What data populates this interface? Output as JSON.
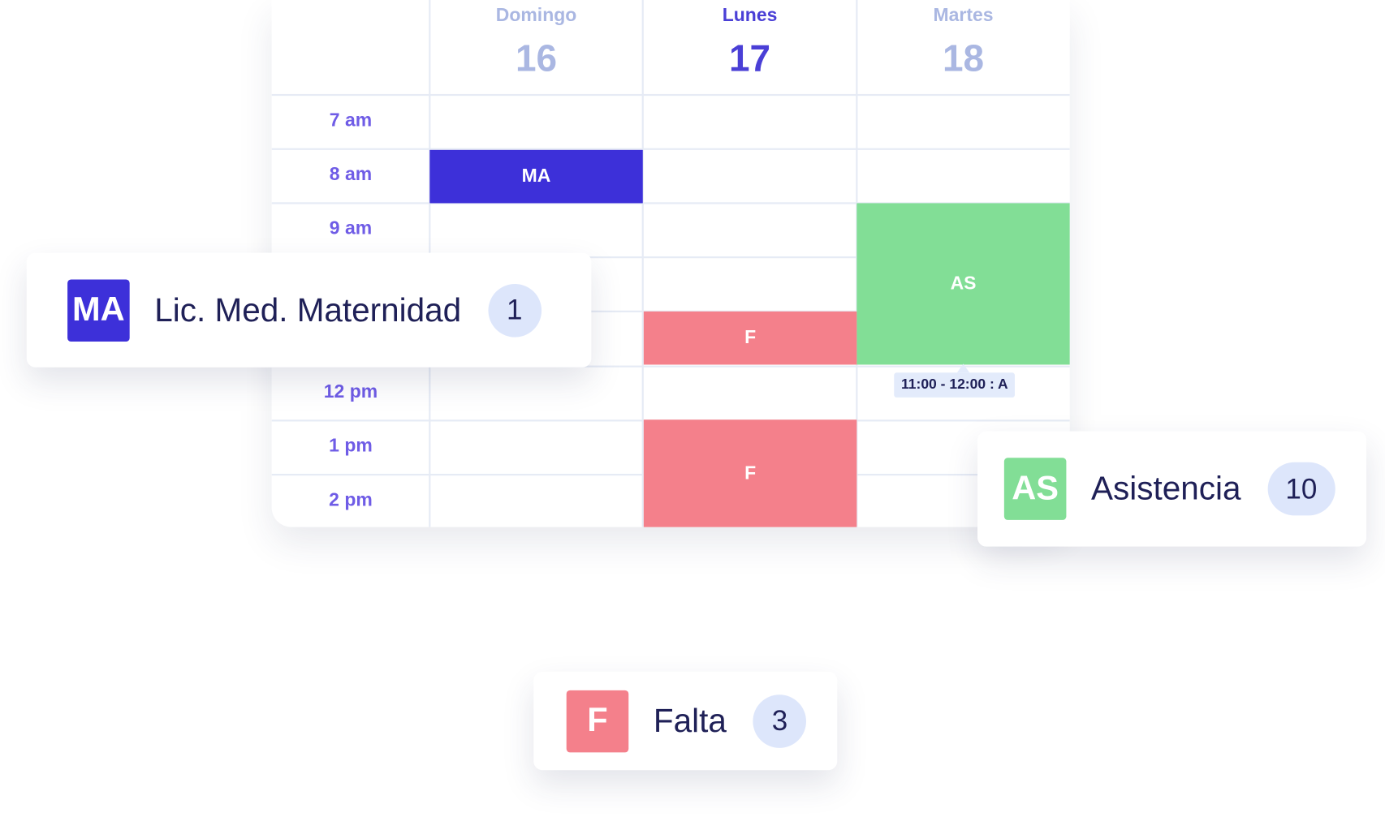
{
  "calendar": {
    "days": [
      {
        "name": "Domingo",
        "number": "16"
      },
      {
        "name": "Lunes",
        "number": "17"
      },
      {
        "name": "Martes",
        "number": "18"
      }
    ],
    "times": [
      "7 am",
      "8 am",
      "9 am",
      null,
      null,
      "12 pm",
      "1 pm",
      "2 pm"
    ],
    "events": [
      "MA",
      "AS",
      "F",
      "F"
    ],
    "tooltip": "11:00 - 12:00 : A"
  },
  "legend": [
    {
      "code": "MA",
      "label": "Lic. Med. Maternidad",
      "count": "1"
    },
    {
      "code": "AS",
      "label": "Asistencia",
      "count": "10"
    },
    {
      "code": "F",
      "label": "Falta",
      "count": "3"
    }
  ]
}
